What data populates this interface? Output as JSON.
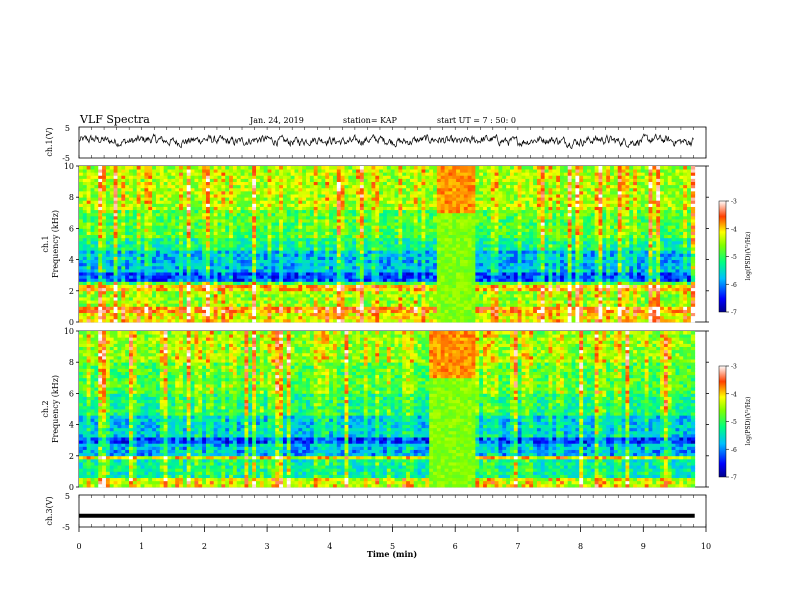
{
  "header": {
    "title": "VLF Spectra",
    "date": "Jan. 24, 2019",
    "station": "station= KAP",
    "start": "start UT =  7 : 50: 0"
  },
  "chart_data": [
    {
      "type": "line",
      "panel": "ch1-waveform",
      "ylabel": "ch.1(V)",
      "ylim": [
        -5,
        5
      ],
      "yticks": [
        -5,
        5
      ],
      "xlim": [
        0,
        10
      ]
    },
    {
      "type": "heatmap",
      "panel": "ch1-spectrogram",
      "ylabel": "Frequency (kHz)",
      "ylabel2": "ch.1",
      "ylim": [
        0,
        10
      ],
      "yticks": [
        0,
        2,
        4,
        6,
        8,
        10
      ],
      "xlim": [
        0,
        9.82
      ],
      "colorbar": {
        "label": "log(PSD)(V²/Hz)",
        "range": [
          -7,
          -3
        ],
        "ticks": [
          -3,
          -4,
          -5,
          -6,
          -7
        ]
      },
      "bands_khz": [
        {
          "from": 0.0,
          "to": 0.6,
          "level": -4.2
        },
        {
          "from": 0.6,
          "to": 1.0,
          "level": -3.8
        },
        {
          "from": 1.0,
          "to": 2.0,
          "level": -4.6
        },
        {
          "from": 2.0,
          "to": 2.4,
          "level": -4.0
        },
        {
          "from": 2.4,
          "to": 2.7,
          "level": -5.0
        },
        {
          "from": 2.7,
          "to": 3.3,
          "level": -6.3
        },
        {
          "from": 3.3,
          "to": 4.6,
          "level": -5.8
        },
        {
          "from": 4.6,
          "to": 5.4,
          "level": -5.3
        },
        {
          "from": 5.4,
          "to": 7.2,
          "level": -4.9
        },
        {
          "from": 7.2,
          "to": 10.0,
          "level": -4.5
        }
      ],
      "event_window_min": [
        5.7,
        6.3
      ]
    },
    {
      "type": "heatmap",
      "panel": "ch2-spectrogram",
      "ylabel": "Frequency (kHz)",
      "ylabel2": "ch.2",
      "ylim": [
        0,
        10
      ],
      "yticks": [
        0,
        2,
        4,
        6,
        8,
        10
      ],
      "xlim": [
        0,
        9.82
      ],
      "colorbar": {
        "label": "log(PSD)(V²/Hz)",
        "range": [
          -7,
          -3
        ],
        "ticks": [
          -3,
          -4,
          -5,
          -6,
          -7
        ]
      },
      "bands_khz": [
        {
          "from": 0.0,
          "to": 0.6,
          "level": -4.4
        },
        {
          "from": 0.6,
          "to": 1.8,
          "level": -5.4
        },
        {
          "from": 1.8,
          "to": 2.0,
          "level": -4.3
        },
        {
          "from": 2.0,
          "to": 2.8,
          "level": -5.9
        },
        {
          "from": 2.8,
          "to": 3.3,
          "level": -6.4
        },
        {
          "from": 3.3,
          "to": 4.6,
          "level": -5.7
        },
        {
          "from": 4.6,
          "to": 6.0,
          "level": -5.2
        },
        {
          "from": 6.0,
          "to": 8.0,
          "level": -4.9
        },
        {
          "from": 8.0,
          "to": 10.0,
          "level": -4.6
        }
      ],
      "event_window_min": [
        5.6,
        6.3
      ]
    },
    {
      "type": "line",
      "panel": "ch3-waveform",
      "ylabel": "ch.3(V)",
      "ylim": [
        -5,
        5
      ],
      "yticks": [
        -5,
        5
      ],
      "xlim": [
        0,
        10
      ],
      "xlabel": "Time (min)",
      "xticks": [
        0,
        1,
        2,
        3,
        4,
        5,
        6,
        7,
        8,
        9,
        10
      ],
      "series": [
        {
          "x": [
            0,
            9.82
          ],
          "y": [
            -1.5,
            -1.5
          ]
        }
      ]
    }
  ]
}
